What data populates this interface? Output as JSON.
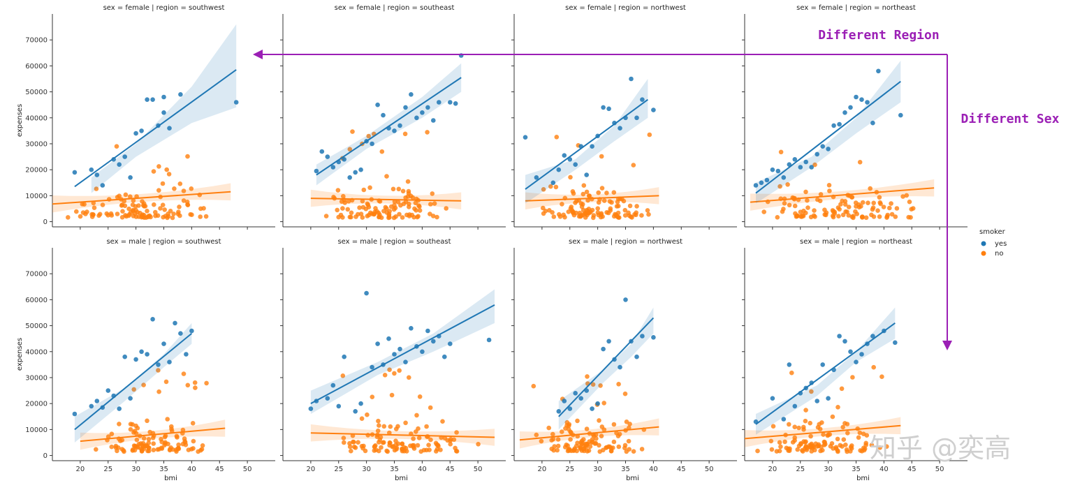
{
  "chart_data": {
    "type": "scatter",
    "subtype": "lmplot facet grid with regression lines and confidence bands",
    "xlabel": "bmi",
    "ylabel": "expenses",
    "xticks": [
      20,
      25,
      30,
      35,
      40,
      45,
      50
    ],
    "yticks": [
      0,
      10000,
      20000,
      30000,
      40000,
      50000,
      60000,
      70000
    ],
    "xlim": [
      15,
      55
    ],
    "ylim": [
      -2000,
      80000
    ],
    "row_var": "sex",
    "col_var": "region",
    "legend": {
      "title": "smoker",
      "entries": [
        {
          "label": "yes",
          "color": "#1f77b4"
        },
        {
          "label": "no",
          "color": "#ff7f0e"
        }
      ],
      "placement": "right"
    },
    "panels": [
      {
        "title": "sex = female | region = southwest",
        "yes": {
          "fit": [
            [
              19,
              13500
            ],
            [
              48,
              58500
            ]
          ],
          "band": [
            [
              22,
              17000,
              11000
            ],
            [
              30,
              30000,
              25000
            ],
            [
              40,
              52000,
              38000
            ],
            [
              48,
              76000,
              44000
            ]
          ],
          "x": [
            19,
            22,
            23,
            24,
            26,
            27,
            28,
            29,
            30,
            31,
            32,
            33,
            34,
            35,
            35,
            36,
            38,
            48
          ],
          "y": [
            19000,
            20000,
            18000,
            14000,
            24000,
            22000,
            25000,
            17000,
            34000,
            35000,
            47000,
            47000,
            37000,
            48000,
            42000,
            36000,
            49000,
            46000
          ]
        },
        "no": {
          "fit": [
            [
              15,
              6800
            ],
            [
              47,
              11500
            ]
          ]
        }
      },
      {
        "title": "sex = female | region = southeast",
        "yes": {
          "fit": [
            [
              21,
              18000
            ],
            [
              47,
              55500
            ]
          ],
          "band": [
            [
              21,
              22000,
              14000
            ],
            [
              30,
              33000,
              28000
            ],
            [
              40,
              48000,
              40000
            ],
            [
              47,
              61000,
              50000
            ]
          ],
          "x": [
            21,
            22,
            23,
            24,
            25,
            26,
            27,
            28,
            29,
            30,
            31,
            32,
            33,
            34,
            35,
            36,
            37,
            38,
            39,
            40,
            41,
            42,
            43,
            45,
            46,
            47
          ],
          "y": [
            19500,
            27000,
            25000,
            21000,
            23000,
            24000,
            17000,
            19000,
            20000,
            31000,
            30000,
            45000,
            41000,
            36000,
            35000,
            37000,
            44000,
            49000,
            40000,
            42000,
            44000,
            39000,
            46000,
            46000,
            45500,
            64000
          ]
        },
        "no": {
          "fit": [
            [
              20,
              9000
            ],
            [
              47,
              8000
            ]
          ]
        }
      },
      {
        "title": "sex = female | region = northwest",
        "yes": {
          "fit": [
            [
              17,
              12500
            ],
            [
              39,
              47000
            ]
          ],
          "band": [
            [
              17,
              18000,
              7000
            ],
            [
              26,
              24000,
              20000
            ],
            [
              33,
              37000,
              31000
            ],
            [
              39,
              55000,
              40000
            ]
          ],
          "x": [
            17,
            19,
            22,
            23,
            24,
            25,
            26,
            27,
            28,
            29,
            30,
            31,
            32,
            33,
            34,
            35,
            36,
            37,
            38,
            40
          ],
          "y": [
            32500,
            17000,
            15000,
            20000,
            25500,
            24000,
            22000,
            29000,
            18000,
            29000,
            33000,
            44000,
            43500,
            38000,
            36000,
            40000,
            55000,
            40000,
            47000,
            43000
          ]
        },
        "no": {
          "fit": [
            [
              17,
              8000
            ],
            [
              41,
              10000
            ]
          ]
        }
      },
      {
        "title": "sex = female | region = northeast",
        "yes": {
          "fit": [
            [
              17,
              11000
            ],
            [
              43,
              54000
            ]
          ],
          "band": [
            [
              17,
              15000,
              7000
            ],
            [
              27,
              25000,
              21000
            ],
            [
              35,
              40000,
              34000
            ],
            [
              43,
              62000,
              46000
            ]
          ],
          "x": [
            17,
            18,
            19,
            20,
            21,
            22,
            23,
            24,
            25,
            26,
            27,
            28,
            29,
            30,
            31,
            32,
            33,
            34,
            35,
            36,
            37,
            38,
            39,
            43
          ],
          "y": [
            14000,
            15000,
            16000,
            20000,
            19500,
            17000,
            22000,
            24000,
            21000,
            23000,
            21000,
            26000,
            29000,
            28000,
            37000,
            37500,
            42000,
            44000,
            48000,
            47000,
            46000,
            38000,
            58000,
            41000
          ]
        },
        "no": {
          "fit": [
            [
              16,
              7500
            ],
            [
              49,
              13000
            ]
          ]
        }
      },
      {
        "title": "sex = male | region = southwest",
        "yes": {
          "fit": [
            [
              19,
              10000
            ],
            [
              40,
              47000
            ]
          ],
          "band": [
            [
              19,
              15000,
              5000
            ],
            [
              28,
              26000,
              21000
            ],
            [
              35,
              39000,
              34000
            ],
            [
              40,
              51000,
              43000
            ]
          ],
          "x": [
            19,
            22,
            23,
            24,
            25,
            26,
            27,
            28,
            29,
            30,
            31,
            32,
            33,
            34,
            35,
            36,
            37,
            38,
            39,
            40
          ],
          "y": [
            16000,
            19000,
            21000,
            18500,
            25000,
            23000,
            18000,
            38000,
            22000,
            37000,
            40000,
            39000,
            52500,
            35000,
            43000,
            36000,
            51000,
            47000,
            39000,
            48000
          ]
        },
        "no": {
          "fit": [
            [
              20,
              5500
            ],
            [
              46,
              10500
            ]
          ]
        }
      },
      {
        "title": "sex = male | region = southeast",
        "yes": {
          "fit": [
            [
              20,
              20000
            ],
            [
              53,
              58000
            ]
          ],
          "band": [
            [
              20,
              25000,
              16000
            ],
            [
              32,
              36000,
              31000
            ],
            [
              42,
              47000,
              40000
            ],
            [
              53,
              64000,
              51000
            ]
          ],
          "x": [
            20,
            21,
            23,
            24,
            25,
            26,
            28,
            29,
            30,
            31,
            32,
            33,
            34,
            35,
            36,
            37,
            38,
            39,
            40,
            41,
            42,
            43,
            44,
            45,
            52
          ],
          "y": [
            18000,
            21000,
            22000,
            27000,
            19000,
            38000,
            17000,
            20000,
            62500,
            34000,
            43000,
            35000,
            45000,
            39000,
            41000,
            36000,
            49000,
            42000,
            40000,
            48000,
            44000,
            46000,
            38000,
            43000,
            44500
          ]
        },
        "no": {
          "fit": [
            [
              20,
              8700
            ],
            [
              53,
              7000
            ]
          ]
        }
      },
      {
        "title": "sex = male | region = northwest",
        "yes": {
          "fit": [
            [
              23,
              15000
            ],
            [
              40,
              53000
            ]
          ],
          "band": [
            [
              23,
              21000,
              10000
            ],
            [
              31,
              33000,
              28000
            ],
            [
              36,
              43000,
              38000
            ],
            [
              40,
              57000,
              47000
            ]
          ],
          "x": [
            23,
            24,
            25,
            26,
            27,
            28,
            29,
            30,
            31,
            32,
            33,
            34,
            35,
            36,
            37,
            38,
            40
          ],
          "y": [
            17000,
            21000,
            18000,
            24000,
            22000,
            25000,
            18000,
            20000,
            41000,
            44000,
            37000,
            34000,
            60000,
            44000,
            38000,
            46000,
            45500
          ]
        },
        "no": {
          "fit": [
            [
              16,
              6000
            ],
            [
              41,
              11000
            ]
          ]
        }
      },
      {
        "title": "sex = male | region = northeast",
        "yes": {
          "fit": [
            [
              17,
              12000
            ],
            [
              42,
              51000
            ]
          ],
          "band": [
            [
              17,
              16000,
              8000
            ],
            [
              28,
              27000,
              23000
            ],
            [
              35,
              40000,
              36000
            ],
            [
              42,
              57000,
              45000
            ]
          ],
          "x": [
            17,
            20,
            22,
            23,
            24,
            25,
            26,
            27,
            28,
            29,
            30,
            31,
            32,
            33,
            34,
            35,
            36,
            37,
            38,
            40,
            42
          ],
          "y": [
            13000,
            22000,
            14000,
            35000,
            19000,
            24000,
            26000,
            28000,
            21000,
            35000,
            22000,
            33000,
            46000,
            44000,
            40000,
            36000,
            39000,
            43000,
            46000,
            48000,
            43500
          ]
        },
        "no": {
          "fit": [
            [
              15,
              6500
            ],
            [
              43,
              11500
            ]
          ]
        }
      }
    ],
    "annotations": [
      "Different Region",
      "Different Sex"
    ]
  },
  "colors": {
    "yes": "#1f77b4",
    "no": "#ff7f0e",
    "annotation": "#9b1fb5",
    "band_yes": "#1f77b4",
    "band_no": "#ff7f0e"
  },
  "watermark": "知乎 @奕高"
}
